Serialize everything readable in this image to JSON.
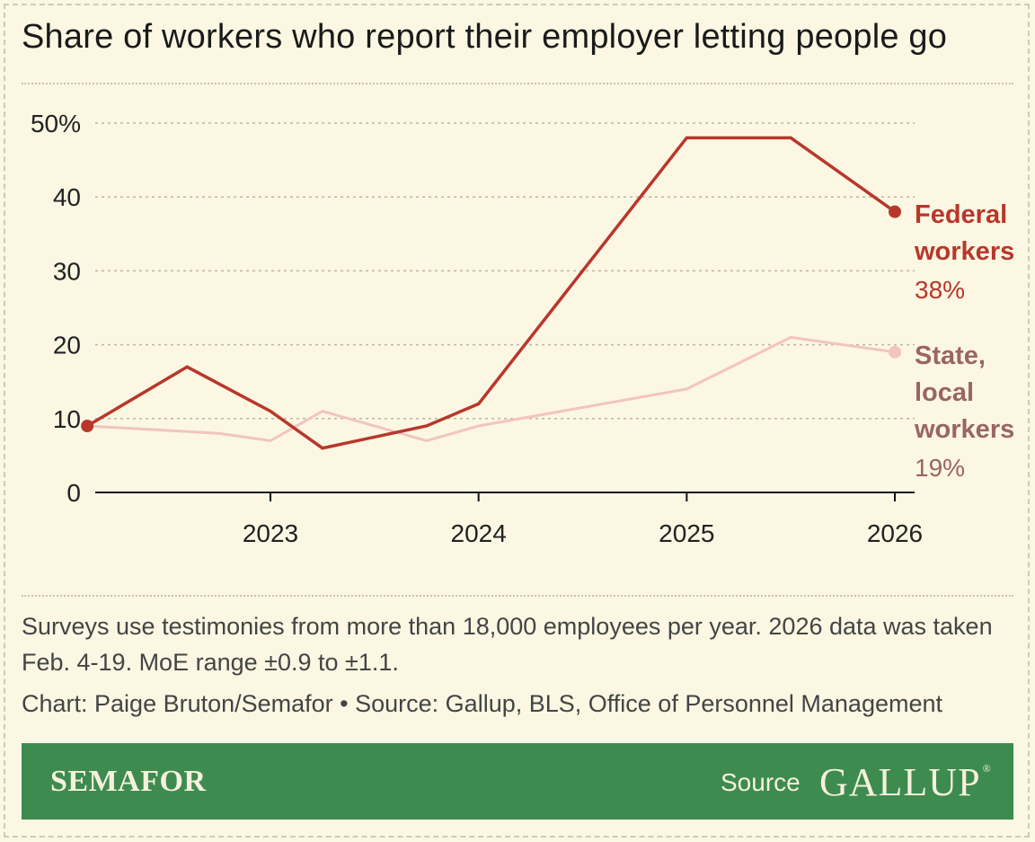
{
  "title": "Share of workers who report their employer letting people go",
  "chart_data": {
    "type": "line",
    "title": "Share of workers who report their employer letting people go",
    "x_ticks": [
      2023,
      2024,
      2025,
      2026
    ],
    "y_ticks": [
      0,
      10,
      20,
      30,
      40,
      50
    ],
    "y_tick_labels": [
      "0",
      "10",
      "20",
      "30",
      "40",
      "50%"
    ],
    "ylim": [
      0,
      50
    ],
    "xlim": [
      2022.3,
      2026.1
    ],
    "grid": "horizontal dotted",
    "series": [
      {
        "name": "Federal workers",
        "label_lines": [
          "Federal",
          "workers"
        ],
        "end_label": "38%",
        "color": "#b8372b",
        "end_label_color": "#b8372b",
        "x": [
          2022.12,
          2022.6,
          2023.0,
          2023.25,
          2023.75,
          2024.0,
          2025.0,
          2025.5,
          2026.0
        ],
        "y": [
          9,
          17,
          11,
          6,
          9,
          12,
          48,
          48,
          38
        ]
      },
      {
        "name": "State, local workers",
        "label_lines": [
          "State,",
          "local",
          "workers"
        ],
        "end_label": "19%",
        "color": "#f2c4bf",
        "name_color": "#9a6565",
        "end_label_color": "#9a6565",
        "x": [
          2022.12,
          2022.75,
          2023.0,
          2023.25,
          2023.75,
          2024.0,
          2025.0,
          2025.5,
          2026.0
        ],
        "y": [
          9,
          8,
          7,
          11,
          7,
          9,
          14,
          21,
          19
        ]
      }
    ]
  },
  "note": "Surveys use testimonies from more than 18,000 employees per year. 2026 data was taken Feb. 4-19. MoE range ±0.9 to ±1.1.",
  "credit": "Chart: Paige Bruton/Semafor • Source: Gallup, BLS, Office of Personnel Management",
  "footer": {
    "brand": "SEMAFOR",
    "source_label": "Source",
    "partner": "GALLUP",
    "partner_mark": "®"
  },
  "colors": {
    "background": "#fbf7e3",
    "footer": "#3e8b4f",
    "federal": "#b8372b",
    "state_local": "#f2c4bf"
  }
}
